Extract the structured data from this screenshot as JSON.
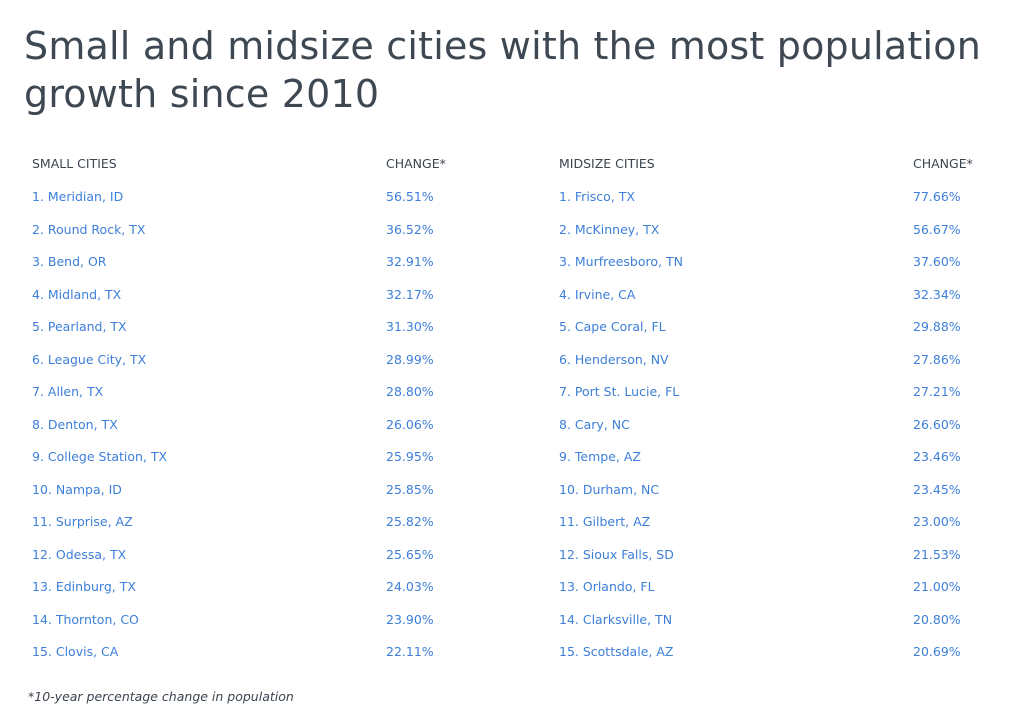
{
  "title": "Small and midsize cities with the most population growth since 2010",
  "footnote": "*10-year percentage change in population",
  "colors": {
    "header_text": "#3b4550",
    "row_text": "#3d7fd9",
    "title_text": "#3d4852"
  },
  "chart_data": {
    "type": "table",
    "title": "Small and midsize cities with the most population growth since 2010",
    "tables": [
      {
        "headers": [
          "SMALL CITIES",
          "CHANGE*"
        ],
        "rows": [
          [
            "1. Meridian, ID",
            "56.51%"
          ],
          [
            "2. Round Rock, TX",
            "36.52%"
          ],
          [
            "3. Bend, OR",
            "32.91%"
          ],
          [
            "4. Midland, TX",
            "32.17%"
          ],
          [
            "5. Pearland, TX",
            "31.30%"
          ],
          [
            "6. League City, TX",
            "28.99%"
          ],
          [
            "7. Allen, TX",
            "28.80%"
          ],
          [
            "8. Denton, TX",
            "26.06%"
          ],
          [
            "9. College Station, TX",
            "25.95%"
          ],
          [
            "10. Nampa, ID",
            "25.85%"
          ],
          [
            "11. Surprise, AZ",
            "25.82%"
          ],
          [
            "12. Odessa, TX",
            "25.65%"
          ],
          [
            "13. Edinburg, TX",
            "24.03%"
          ],
          [
            "14. Thornton, CO",
            "23.90%"
          ],
          [
            "15. Clovis, CA",
            "22.11%"
          ]
        ]
      },
      {
        "headers": [
          "MIDSIZE CITIES",
          "CHANGE*"
        ],
        "rows": [
          [
            "1. Frisco, TX",
            "77.66%"
          ],
          [
            "2. McKinney, TX",
            "56.67%"
          ],
          [
            "3. Murfreesboro, TN",
            "37.60%"
          ],
          [
            "4. Irvine, CA",
            "32.34%"
          ],
          [
            "5. Cape Coral, FL",
            "29.88%"
          ],
          [
            "6. Henderson, NV",
            "27.86%"
          ],
          [
            "7. Port St. Lucie, FL",
            "27.21%"
          ],
          [
            "8. Cary, NC",
            "26.60%"
          ],
          [
            "9. Tempe, AZ",
            "23.46%"
          ],
          [
            "10. Durham, NC",
            "23.45%"
          ],
          [
            "11. Gilbert, AZ",
            "23.00%"
          ],
          [
            "12. Sioux Falls, SD",
            "21.53%"
          ],
          [
            "13. Orlando, FL",
            "21.00%"
          ],
          [
            "14. Clarksville, TN",
            "20.80%"
          ],
          [
            "15. Scottsdale, AZ",
            "20.69%"
          ]
        ]
      }
    ]
  }
}
